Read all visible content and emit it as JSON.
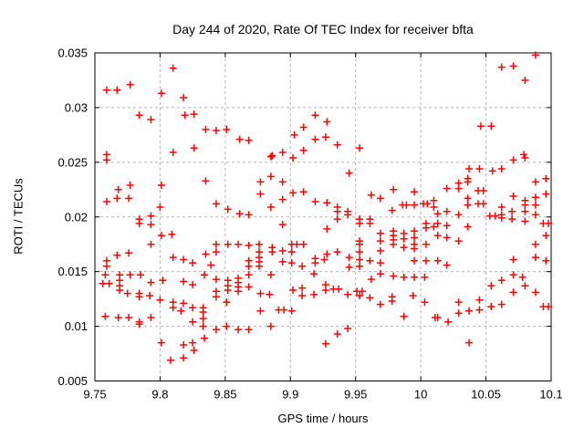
{
  "title": "Day 244 of 2020, Rate Of TEC Index for receiver bfta",
  "chart_data": {
    "type": "scatter",
    "title": "Day 244 of 2020, Rate Of TEC Index for receiver bfta",
    "xlabel": "GPS time / hours",
    "ylabel": "ROTI / TECUs",
    "xlim": [
      9.75,
      10.1
    ],
    "ylim": [
      0.005,
      0.035
    ],
    "xticks": [
      {
        "v": 9.75,
        "label": "9.75"
      },
      {
        "v": 9.8,
        "label": "9.8"
      },
      {
        "v": 9.85,
        "label": "9.85"
      },
      {
        "v": 9.9,
        "label": "9.9"
      },
      {
        "v": 9.95,
        "label": "9.95"
      },
      {
        "v": 10.0,
        "label": "10"
      },
      {
        "v": 10.05,
        "label": "10.05"
      },
      {
        "v": 10.1,
        "label": "10.1"
      }
    ],
    "yticks": [
      {
        "v": 0.005,
        "label": "0.005"
      },
      {
        "v": 0.01,
        "label": "0.01"
      },
      {
        "v": 0.015,
        "label": "0.015"
      },
      {
        "v": 0.02,
        "label": "0.02"
      },
      {
        "v": 0.025,
        "label": "0.025"
      },
      {
        "v": 0.03,
        "label": "0.03"
      },
      {
        "v": 0.035,
        "label": "0.035"
      }
    ],
    "grid": true,
    "legend": false,
    "marker": {
      "shape": "plus",
      "color": "#ff0000"
    },
    "grid_color": "#b4b4b4",
    "points": [
      [
        9.759,
        0.0316
      ],
      [
        9.767,
        0.0316
      ],
      [
        9.777,
        0.0321
      ],
      [
        9.81,
        0.0336
      ],
      [
        9.801,
        0.0313
      ],
      [
        9.818,
        0.0309
      ],
      [
        9.784,
        0.0293
      ],
      [
        9.793,
        0.0289
      ],
      [
        9.819,
        0.0293
      ],
      [
        9.826,
        0.0294
      ],
      [
        9.835,
        0.028
      ],
      [
        9.81,
        0.0259
      ],
      [
        9.826,
        0.0263
      ],
      [
        9.759,
        0.0257
      ],
      [
        9.843,
        0.0279
      ],
      [
        9.851,
        0.028
      ],
      [
        9.861,
        0.0271
      ],
      [
        9.868,
        0.027
      ],
      [
        9.886,
        0.0256
      ],
      [
        9.894,
        0.0259
      ],
      [
        9.903,
        0.0275
      ],
      [
        9.91,
        0.0282
      ],
      [
        9.919,
        0.0293
      ],
      [
        9.919,
        0.0271
      ],
      [
        9.91,
        0.0261
      ],
      [
        9.902,
        0.0254
      ],
      [
        9.928,
        0.0287
      ],
      [
        9.927,
        0.0273
      ],
      [
        9.936,
        0.0266
      ],
      [
        9.953,
        0.0263
      ],
      [
        9.945,
        0.024
      ],
      [
        10.088,
        0.0348
      ],
      [
        10.062,
        0.0337
      ],
      [
        10.071,
        0.0338
      ],
      [
        10.08,
        0.0325
      ],
      [
        10.046,
        0.0283
      ],
      [
        10.054,
        0.0283
      ],
      [
        10.079,
        0.0257
      ],
      [
        9.759,
        0.0252
      ],
      [
        9.759,
        0.0214
      ],
      [
        9.768,
        0.0225
      ],
      [
        9.767,
        0.0217
      ],
      [
        9.777,
        0.0229
      ],
      [
        9.776,
        0.0217
      ],
      [
        9.801,
        0.0229
      ],
      [
        9.8,
        0.0209
      ],
      [
        9.835,
        0.0233
      ],
      [
        9.784,
        0.0198
      ],
      [
        9.784,
        0.0194
      ],
      [
        9.793,
        0.0201
      ],
      [
        9.793,
        0.0193
      ],
      [
        9.801,
        0.0183
      ],
      [
        9.809,
        0.0184
      ],
      [
        9.793,
        0.0175
      ],
      [
        9.835,
        0.0166
      ],
      [
        9.776,
        0.0167
      ],
      [
        9.767,
        0.0165
      ],
      [
        9.759,
        0.016
      ],
      [
        9.759,
        0.0155
      ],
      [
        9.81,
        0.0163
      ],
      [
        9.818,
        0.0161
      ],
      [
        9.825,
        0.0158
      ],
      [
        9.885,
        0.0255
      ],
      [
        9.877,
        0.0232
      ],
      [
        9.885,
        0.0237
      ],
      [
        9.894,
        0.0232
      ],
      [
        9.877,
        0.0221
      ],
      [
        9.894,
        0.0216
      ],
      [
        9.902,
        0.0222
      ],
      [
        9.91,
        0.0223
      ],
      [
        9.919,
        0.0214
      ],
      [
        9.885,
        0.0209
      ],
      [
        9.843,
        0.0212
      ],
      [
        9.852,
        0.0207
      ],
      [
        9.861,
        0.0203
      ],
      [
        9.868,
        0.0202
      ],
      [
        9.894,
        0.0193
      ],
      [
        9.843,
        0.0175
      ],
      [
        9.843,
        0.0168
      ],
      [
        9.852,
        0.0175
      ],
      [
        9.86,
        0.0175
      ],
      [
        9.868,
        0.0174
      ],
      [
        9.876,
        0.0175
      ],
      [
        9.876,
        0.0168
      ],
      [
        9.886,
        0.0172
      ],
      [
        9.886,
        0.0168
      ],
      [
        9.894,
        0.0169
      ],
      [
        9.901,
        0.0175
      ],
      [
        9.901,
        0.0168
      ],
      [
        9.905,
        0.0175
      ],
      [
        9.91,
        0.0175
      ],
      [
        9.868,
        0.016
      ],
      [
        9.868,
        0.0155
      ],
      [
        9.876,
        0.0163
      ],
      [
        9.876,
        0.0159
      ],
      [
        9.876,
        0.0155
      ],
      [
        9.894,
        0.0159
      ],
      [
        9.901,
        0.0158
      ],
      [
        9.909,
        0.0155
      ],
      [
        9.919,
        0.0162
      ],
      [
        9.919,
        0.0158
      ],
      [
        9.839,
        0.0156
      ],
      [
        9.962,
        0.022
      ],
      [
        9.969,
        0.0217
      ],
      [
        9.979,
        0.0225
      ],
      [
        9.995,
        0.0223
      ],
      [
        9.928,
        0.0213
      ],
      [
        9.936,
        0.0209
      ],
      [
        9.936,
        0.0205
      ],
      [
        9.936,
        0.0198
      ],
      [
        9.944,
        0.0205
      ],
      [
        9.944,
        0.0202
      ],
      [
        9.978,
        0.0206
      ],
      [
        9.986,
        0.0211
      ],
      [
        9.989,
        0.0211
      ],
      [
        9.995,
        0.0211
      ],
      [
        10.002,
        0.0212
      ],
      [
        10.005,
        0.0212
      ],
      [
        10.01,
        0.0215
      ],
      [
        10.01,
        0.0209
      ],
      [
        9.953,
        0.0198
      ],
      [
        9.953,
        0.0194
      ],
      [
        9.961,
        0.0198
      ],
      [
        9.961,
        0.0194
      ],
      [
        9.928,
        0.0189
      ],
      [
        9.953,
        0.0178
      ],
      [
        9.953,
        0.0175
      ],
      [
        9.969,
        0.0185
      ],
      [
        9.969,
        0.0178
      ],
      [
        9.979,
        0.0187
      ],
      [
        9.979,
        0.0183
      ],
      [
        9.979,
        0.0179
      ],
      [
        9.979,
        0.0175
      ],
      [
        9.987,
        0.0185
      ],
      [
        9.987,
        0.018
      ],
      [
        9.995,
        0.0187
      ],
      [
        9.995,
        0.0181
      ],
      [
        10.004,
        0.0194
      ],
      [
        10.004,
        0.019
      ],
      [
        10.01,
        0.0191
      ],
      [
        9.928,
        0.0166
      ],
      [
        9.936,
        0.0168
      ],
      [
        9.953,
        0.0168
      ],
      [
        9.969,
        0.0169
      ],
      [
        9.987,
        0.0172
      ],
      [
        9.995,
        0.0175
      ],
      [
        9.995,
        0.0171
      ],
      [
        10.004,
        0.0175
      ],
      [
        9.926,
        0.0161
      ],
      [
        9.945,
        0.0163
      ],
      [
        9.953,
        0.0161
      ],
      [
        9.961,
        0.016
      ],
      [
        9.945,
        0.0154
      ],
      [
        9.953,
        0.0155
      ],
      [
        9.969,
        0.0158
      ],
      [
        9.995,
        0.016
      ],
      [
        10.004,
        0.016
      ],
      [
        10.071,
        0.0252
      ],
      [
        10.08,
        0.0254
      ],
      [
        10.037,
        0.0244
      ],
      [
        10.045,
        0.0244
      ],
      [
        10.055,
        0.0242
      ],
      [
        10.062,
        0.0244
      ],
      [
        10.036,
        0.0232
      ],
      [
        10.036,
        0.0235
      ],
      [
        10.02,
        0.0226
      ],
      [
        10.029,
        0.0231
      ],
      [
        10.029,
        0.0226
      ],
      [
        10.044,
        0.0224
      ],
      [
        10.048,
        0.0224
      ],
      [
        10.036,
        0.0217
      ],
      [
        10.036,
        0.0211
      ],
      [
        10.044,
        0.0212
      ],
      [
        10.048,
        0.0212
      ],
      [
        10.088,
        0.0232
      ],
      [
        10.096,
        0.0235
      ],
      [
        10.096,
        0.0221
      ],
      [
        10.088,
        0.0218
      ],
      [
        10.088,
        0.0211
      ],
      [
        10.08,
        0.0215
      ],
      [
        10.08,
        0.0211
      ],
      [
        10.08,
        0.0205
      ],
      [
        10.071,
        0.0219
      ],
      [
        10.02,
        0.0205
      ],
      [
        10.029,
        0.0202
      ],
      [
        10.013,
        0.0203
      ],
      [
        10.013,
        0.0194
      ],
      [
        10.02,
        0.0192
      ],
      [
        10.053,
        0.0201
      ],
      [
        10.057,
        0.0201
      ],
      [
        10.062,
        0.0202
      ],
      [
        10.062,
        0.0199
      ],
      [
        10.07,
        0.0198
      ],
      [
        10.07,
        0.0205
      ],
      [
        10.062,
        0.0209
      ],
      [
        10.088,
        0.0202
      ],
      [
        10.08,
        0.0196
      ],
      [
        10.094,
        0.0194
      ],
      [
        10.098,
        0.0194
      ],
      [
        10.036,
        0.0191
      ],
      [
        10.013,
        0.0183
      ],
      [
        10.02,
        0.0181
      ],
      [
        10.029,
        0.0178
      ],
      [
        10.096,
        0.0183
      ],
      [
        10.088,
        0.0175
      ],
      [
        10.088,
        0.0163
      ],
      [
        10.096,
        0.016
      ],
      [
        10.071,
        0.0161
      ],
      [
        10.02,
        0.0156
      ],
      [
        10.013,
        0.016
      ],
      [
        9.758,
        0.0147
      ],
      [
        9.769,
        0.0147
      ],
      [
        9.777,
        0.0147
      ],
      [
        9.785,
        0.0147
      ],
      [
        9.756,
        0.0139
      ],
      [
        9.761,
        0.0139
      ],
      [
        9.769,
        0.0142
      ],
      [
        9.769,
        0.0137
      ],
      [
        9.769,
        0.0133
      ],
      [
        9.793,
        0.014
      ],
      [
        9.802,
        0.0142
      ],
      [
        9.818,
        0.0141
      ],
      [
        9.825,
        0.0138
      ],
      [
        9.834,
        0.0147
      ],
      [
        9.775,
        0.013
      ],
      [
        9.784,
        0.013
      ],
      [
        9.784,
        0.0127
      ],
      [
        9.792,
        0.0128
      ],
      [
        9.8,
        0.0124
      ],
      [
        9.81,
        0.0122
      ],
      [
        9.818,
        0.0121
      ],
      [
        9.81,
        0.0117
      ],
      [
        9.816,
        0.0114
      ],
      [
        9.825,
        0.0117
      ],
      [
        9.833,
        0.0117
      ],
      [
        9.833,
        0.0113
      ],
      [
        9.758,
        0.0109
      ],
      [
        9.768,
        0.0108
      ],
      [
        9.776,
        0.0108
      ],
      [
        9.784,
        0.0104
      ],
      [
        9.784,
        0.0102
      ],
      [
        9.793,
        0.0108
      ],
      [
        9.825,
        0.0104
      ],
      [
        9.833,
        0.0107
      ],
      [
        9.833,
        0.01
      ],
      [
        9.834,
        0.0089
      ],
      [
        9.825,
        0.0085
      ],
      [
        9.826,
        0.0078
      ],
      [
        9.801,
        0.0085
      ],
      [
        9.818,
        0.0083
      ],
      [
        9.808,
        0.0069
      ],
      [
        9.818,
        0.0071
      ],
      [
        9.868,
        0.0147
      ],
      [
        9.885,
        0.0147
      ],
      [
        9.918,
        0.0148
      ],
      [
        9.843,
        0.0143
      ],
      [
        9.852,
        0.0142
      ],
      [
        9.852,
        0.0137
      ],
      [
        9.852,
        0.0133
      ],
      [
        9.86,
        0.0144
      ],
      [
        9.86,
        0.014
      ],
      [
        9.86,
        0.0136
      ],
      [
        9.86,
        0.0132
      ],
      [
        9.843,
        0.0132
      ],
      [
        9.843,
        0.0127
      ],
      [
        9.868,
        0.0136
      ],
      [
        9.877,
        0.013
      ],
      [
        9.884,
        0.0129
      ],
      [
        9.851,
        0.0122
      ],
      [
        9.877,
        0.0114
      ],
      [
        9.891,
        0.0115
      ],
      [
        9.895,
        0.0115
      ],
      [
        9.901,
        0.0114
      ],
      [
        9.902,
        0.0133
      ],
      [
        9.909,
        0.0135
      ],
      [
        9.909,
        0.0128
      ],
      [
        9.918,
        0.0129
      ],
      [
        9.843,
        0.0097
      ],
      [
        9.851,
        0.01
      ],
      [
        9.86,
        0.0097
      ],
      [
        9.868,
        0.0097
      ],
      [
        9.885,
        0.01
      ],
      [
        9.962,
        0.0143
      ],
      [
        9.979,
        0.0146
      ],
      [
        9.987,
        0.0145
      ],
      [
        9.995,
        0.0145
      ],
      [
        10.003,
        0.0145
      ],
      [
        9.927,
        0.0138
      ],
      [
        9.927,
        0.0133
      ],
      [
        9.933,
        0.0134
      ],
      [
        9.937,
        0.0134
      ],
      [
        9.944,
        0.0129
      ],
      [
        9.951,
        0.0132
      ],
      [
        9.955,
        0.0132
      ],
      [
        9.953,
        0.0128
      ],
      [
        9.961,
        0.0126
      ],
      [
        9.969,
        0.012
      ],
      [
        9.978,
        0.0127
      ],
      [
        9.978,
        0.0123
      ],
      [
        9.994,
        0.0128
      ],
      [
        10.003,
        0.0122
      ],
      [
        9.987,
        0.0109
      ],
      [
        10.011,
        0.0108
      ],
      [
        9.944,
        0.0098
      ],
      [
        9.936,
        0.0093
      ],
      [
        9.927,
        0.0084
      ],
      [
        9.969,
        0.0148
      ],
      [
        10.071,
        0.0147
      ],
      [
        10.078,
        0.0145
      ],
      [
        10.054,
        0.0137
      ],
      [
        10.062,
        0.0142
      ],
      [
        10.08,
        0.0137
      ],
      [
        10.071,
        0.0131
      ],
      [
        10.088,
        0.0131
      ],
      [
        10.029,
        0.0122
      ],
      [
        10.045,
        0.0124
      ],
      [
        10.054,
        0.0118
      ],
      [
        10.062,
        0.012
      ],
      [
        10.029,
        0.0112
      ],
      [
        10.037,
        0.0114
      ],
      [
        10.045,
        0.0115
      ],
      [
        10.094,
        0.0118
      ],
      [
        10.098,
        0.0118
      ],
      [
        10.013,
        0.0108
      ],
      [
        10.021,
        0.0104
      ],
      [
        10.037,
        0.0085
      ]
    ]
  }
}
